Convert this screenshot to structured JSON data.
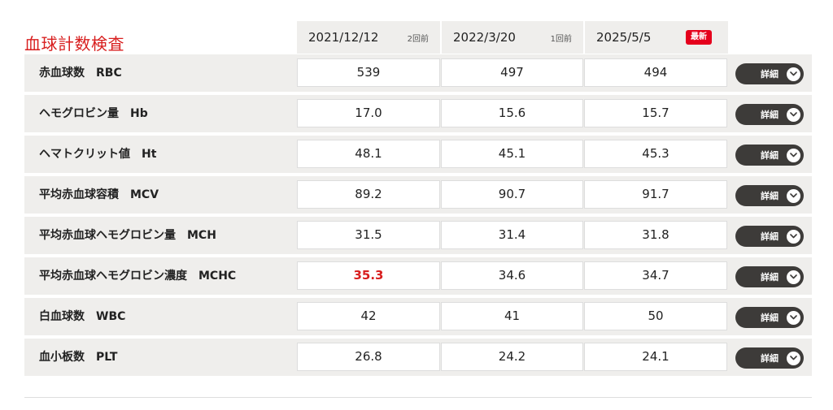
{
  "section": {
    "title": "血球計数検査"
  },
  "columns": [
    {
      "date": "2021/12/12",
      "relative": "2回前",
      "latest_badge": ""
    },
    {
      "date": "2022/3/20",
      "relative": "1回前",
      "latest_badge": ""
    },
    {
      "date": "2025/5/5",
      "relative": "",
      "latest_badge": "最新"
    }
  ],
  "detail_label": "詳細",
  "rows": [
    {
      "name": "赤血球数　RBC",
      "values": [
        "539",
        "497",
        "494"
      ],
      "flags": [
        false,
        false,
        false
      ]
    },
    {
      "name": "ヘモグロビン量　Hb",
      "values": [
        "17.0",
        "15.6",
        "15.7"
      ],
      "flags": [
        false,
        false,
        false
      ]
    },
    {
      "name": "ヘマトクリット値　Ht",
      "values": [
        "48.1",
        "45.1",
        "45.3"
      ],
      "flags": [
        false,
        false,
        false
      ]
    },
    {
      "name": "平均赤血球容積　MCV",
      "values": [
        "89.2",
        "90.7",
        "91.7"
      ],
      "flags": [
        false,
        false,
        false
      ]
    },
    {
      "name": "平均赤血球ヘモグロビン量　MCH",
      "values": [
        "31.5",
        "31.4",
        "31.8"
      ],
      "flags": [
        false,
        false,
        false
      ]
    },
    {
      "name": "平均赤血球ヘモグロビン濃度　MCHC",
      "values": [
        "35.3",
        "34.6",
        "34.7"
      ],
      "flags": [
        true,
        false,
        false
      ]
    },
    {
      "name": "白血球数　WBC",
      "values": [
        "42",
        "41",
        "50"
      ],
      "flags": [
        false,
        false,
        false
      ]
    },
    {
      "name": "血小板数　PLT",
      "values": [
        "26.8",
        "24.2",
        "24.1"
      ],
      "flags": [
        false,
        false,
        false
      ]
    }
  ],
  "colors": {
    "title": "#d81e1e",
    "flag": "#d81e1e",
    "badge": "#e5001c",
    "row_bg": "#efeeec",
    "button_bg": "#3d3b39"
  },
  "icons": {
    "detail_chevron": "chevron-down-icon"
  }
}
